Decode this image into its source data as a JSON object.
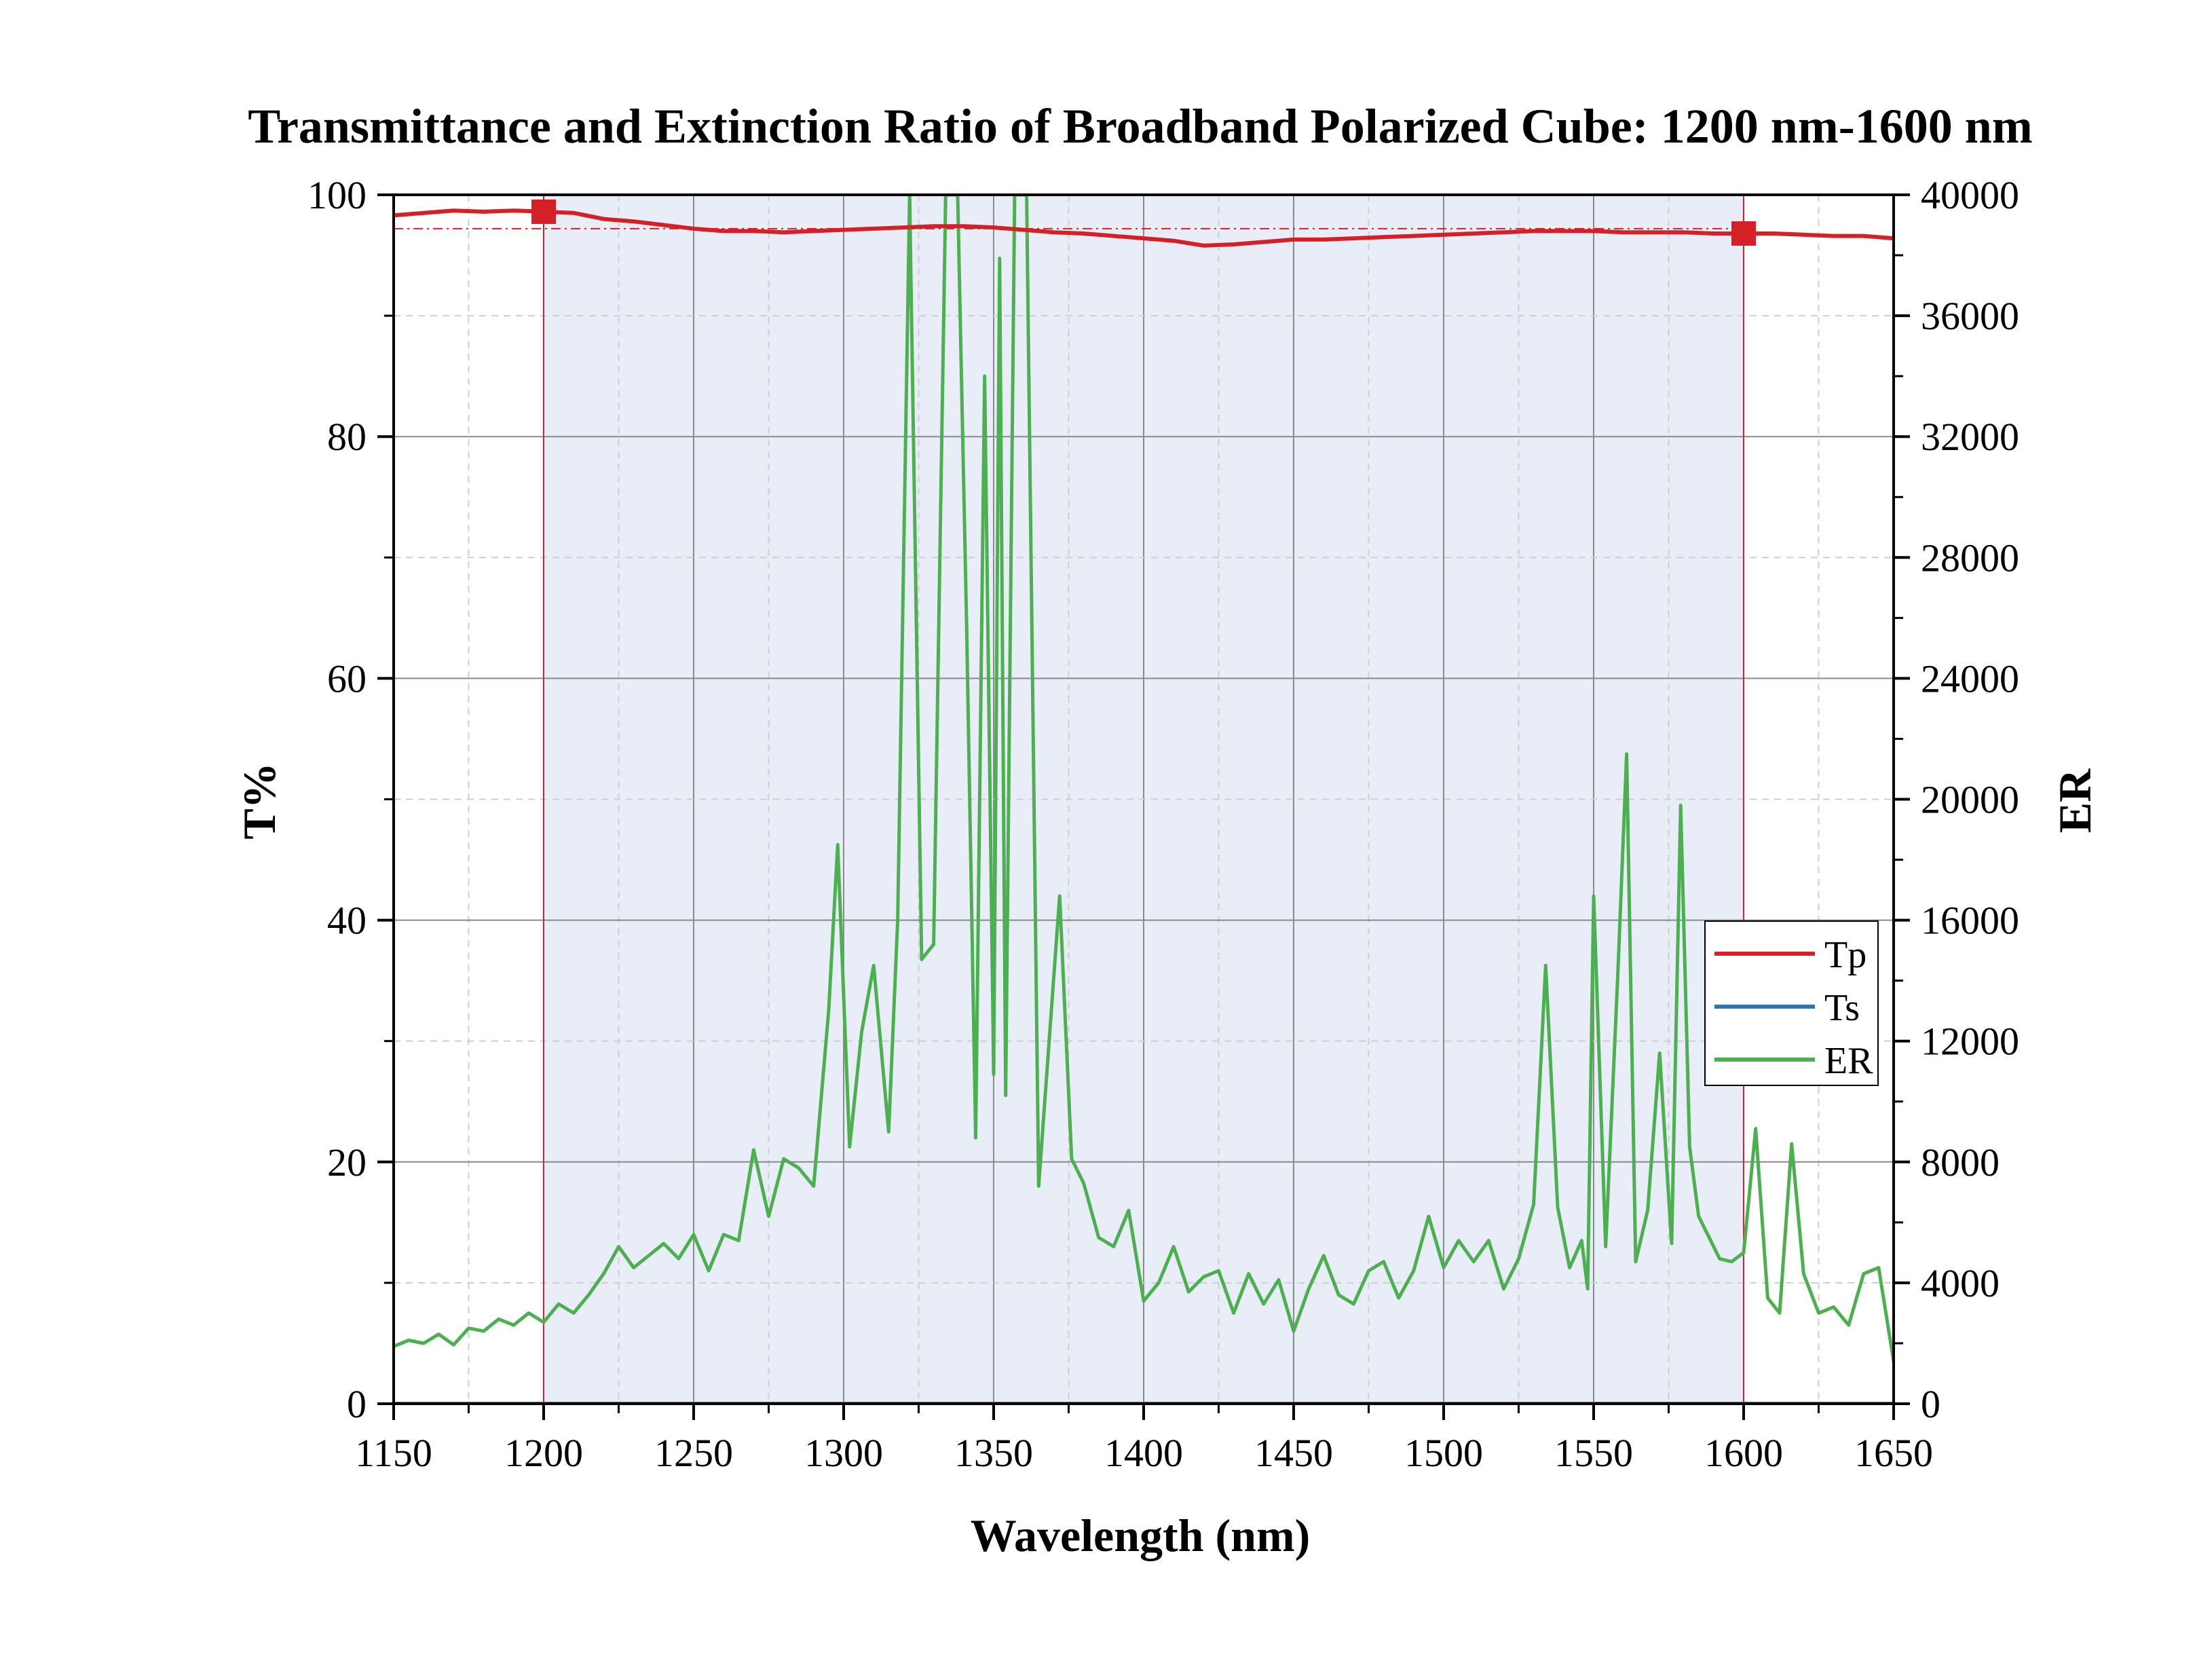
{
  "chart_data": {
    "type": "line",
    "title": "Transmittance and Extinction Ratio of Broadband Polarized Cube: 1200 nm-1600 nm",
    "xlabel": "Wavelength (nm)",
    "ylabel_left": "T%",
    "ylabel_right": "ER",
    "xlim": [
      1150,
      1650
    ],
    "ylim_left": [
      0,
      100
    ],
    "ylim_right": [
      0,
      40000
    ],
    "x_ticks": [
      1150,
      1200,
      1250,
      1300,
      1350,
      1400,
      1450,
      1500,
      1550,
      1600,
      1650
    ],
    "y_left_ticks": [
      0,
      20,
      40,
      60,
      80,
      100
    ],
    "y_right_ticks": [
      0,
      4000,
      8000,
      12000,
      16000,
      20000,
      24000,
      28000,
      32000,
      36000,
      40000
    ],
    "grid": true,
    "legend_position": "right",
    "band": {
      "from": 1200,
      "to": 1600,
      "color": "#e8edf7"
    },
    "markers": [
      {
        "series": "Tp",
        "x": 1200,
        "y": 98.6
      },
      {
        "series": "Tp",
        "x": 1600,
        "y": 96.8
      }
    ],
    "reference_line_y": 97.2,
    "series": [
      {
        "name": "Tp",
        "axis": "left",
        "color": "#d62027",
        "x": [
          1150,
          1160,
          1170,
          1180,
          1190,
          1200,
          1210,
          1220,
          1230,
          1240,
          1250,
          1260,
          1270,
          1280,
          1290,
          1300,
          1310,
          1320,
          1330,
          1340,
          1350,
          1360,
          1370,
          1380,
          1390,
          1400,
          1410,
          1420,
          1430,
          1440,
          1450,
          1460,
          1470,
          1480,
          1490,
          1500,
          1510,
          1520,
          1530,
          1540,
          1550,
          1560,
          1570,
          1580,
          1590,
          1600,
          1610,
          1620,
          1630,
          1640,
          1650
        ],
        "values": [
          98.3,
          98.5,
          98.7,
          98.6,
          98.7,
          98.6,
          98.5,
          98.0,
          97.8,
          97.5,
          97.2,
          97.0,
          97.0,
          96.9,
          97.0,
          97.1,
          97.2,
          97.3,
          97.4,
          97.4,
          97.3,
          97.1,
          96.9,
          96.8,
          96.6,
          96.4,
          96.2,
          95.8,
          95.9,
          96.1,
          96.3,
          96.3,
          96.4,
          96.5,
          96.6,
          96.7,
          96.8,
          96.9,
          97.0,
          97.0,
          97.0,
          96.9,
          96.9,
          96.9,
          96.8,
          96.8,
          96.8,
          96.7,
          96.6,
          96.6,
          96.4
        ]
      },
      {
        "name": "Ts",
        "axis": "left",
        "color": "#2e75b6",
        "x": [
          1150,
          1650
        ],
        "values": [
          0.02,
          0.02
        ]
      },
      {
        "name": "ER",
        "axis": "right",
        "color": "#4caf50",
        "x": [
          1150,
          1155,
          1160,
          1165,
          1170,
          1175,
          1180,
          1185,
          1190,
          1195,
          1200,
          1205,
          1210,
          1215,
          1220,
          1225,
          1230,
          1235,
          1240,
          1245,
          1250,
          1255,
          1260,
          1265,
          1270,
          1275,
          1280,
          1285,
          1290,
          1295,
          1298,
          1302,
          1306,
          1310,
          1315,
          1318,
          1322,
          1326,
          1330,
          1334,
          1338,
          1341,
          1344,
          1347,
          1350,
          1352,
          1354,
          1357,
          1361,
          1365,
          1369,
          1372,
          1376,
          1380,
          1385,
          1390,
          1395,
          1400,
          1405,
          1410,
          1415,
          1420,
          1425,
          1430,
          1435,
          1440,
          1445,
          1450,
          1455,
          1460,
          1465,
          1470,
          1475,
          1480,
          1485,
          1490,
          1495,
          1500,
          1505,
          1510,
          1515,
          1520,
          1525,
          1530,
          1534,
          1538,
          1542,
          1546,
          1548,
          1550,
          1554,
          1558,
          1561,
          1564,
          1568,
          1572,
          1576,
          1579,
          1582,
          1585,
          1589,
          1592,
          1596,
          1600,
          1604,
          1608,
          1612,
          1616,
          1620,
          1625,
          1630,
          1635,
          1640,
          1645,
          1650
        ],
        "values": [
          1900,
          2100,
          2000,
          2300,
          1950,
          2500,
          2400,
          2800,
          2600,
          3000,
          2700,
          3300,
          3000,
          3600,
          4300,
          5200,
          4500,
          4900,
          5300,
          4800,
          5600,
          4400,
          5600,
          5400,
          8400,
          6200,
          8100,
          7800,
          7200,
          13000,
          18500,
          8500,
          12300,
          14500,
          9000,
          16000,
          40000,
          14700,
          15200,
          40000,
          40000,
          25700,
          8800,
          34000,
          10900,
          37900,
          10200,
          40000,
          40000,
          7200,
          12700,
          16800,
          8100,
          7300,
          5500,
          5200,
          6400,
          3400,
          4000,
          5200,
          3700,
          4200,
          4400,
          3000,
          4300,
          3300,
          4100,
          2400,
          3800,
          4900,
          3600,
          3300,
          4400,
          4700,
          3500,
          4400,
          6200,
          4500,
          5400,
          4700,
          5400,
          3800,
          4800,
          6600,
          14500,
          6500,
          4500,
          5400,
          3800,
          16800,
          5200,
          14100,
          21500,
          4700,
          6400,
          11600,
          5300,
          19800,
          8500,
          6200,
          5400,
          4800,
          4700,
          5000,
          9100,
          3500,
          3000,
          8600,
          4300,
          3000,
          3200,
          2600,
          4300,
          4500,
          1400
        ]
      }
    ]
  }
}
